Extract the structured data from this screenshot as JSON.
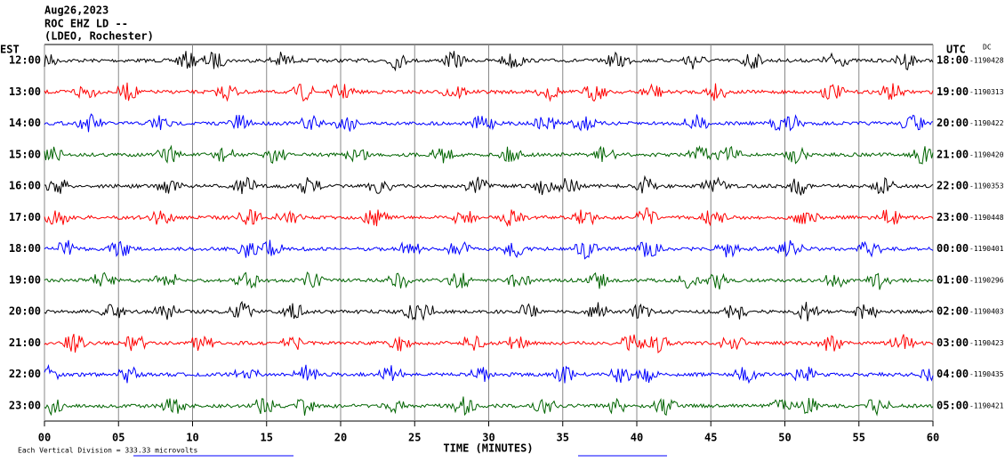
{
  "chart_data": {
    "type": "helicorder",
    "header": [
      "Aug26,2023",
      "ROC EHZ LD --",
      "(LDEO, Rochester)"
    ],
    "left_axis_label": "EST",
    "right_axis_label": "UTC",
    "dc_label": "DC",
    "rows": [
      {
        "left": "12:00",
        "right": "18:00",
        "dc": "-1190428",
        "color": "#000000"
      },
      {
        "left": "13:00",
        "right": "19:00",
        "dc": "-1190313",
        "color": "#ff0000"
      },
      {
        "left": "14:00",
        "right": "20:00",
        "dc": "-1190422",
        "color": "#0000ff"
      },
      {
        "left": "15:00",
        "right": "21:00",
        "dc": "-1190420",
        "color": "#006400"
      },
      {
        "left": "16:00",
        "right": "22:00",
        "dc": "-1190353",
        "color": "#000000"
      },
      {
        "left": "17:00",
        "right": "23:00",
        "dc": "-1190448",
        "color": "#ff0000"
      },
      {
        "left": "18:00",
        "right": "00:00",
        "dc": "-1190401",
        "color": "#0000ff"
      },
      {
        "left": "19:00",
        "right": "01:00",
        "dc": "-1190296",
        "color": "#006400"
      },
      {
        "left": "20:00",
        "right": "02:00",
        "dc": "-1190403",
        "color": "#000000"
      },
      {
        "left": "21:00",
        "right": "03:00",
        "dc": "-1190423",
        "color": "#ff0000"
      },
      {
        "left": "22:00",
        "right": "04:00",
        "dc": "-1190435",
        "color": "#0000ff"
      },
      {
        "left": "23:00",
        "right": "05:00",
        "dc": "-1190421",
        "color": "#006400"
      }
    ],
    "xlabel": "TIME (MINUTES)",
    "xlim": [
      0,
      60
    ],
    "xticks": [
      {
        "value": 0,
        "label": "00"
      },
      {
        "value": 5,
        "label": "05"
      },
      10,
      15,
      20,
      25,
      30,
      35,
      40,
      45,
      50,
      55,
      60
    ],
    "grid": true,
    "footer": "Each Vertical Division = 333.33 microvolts"
  }
}
